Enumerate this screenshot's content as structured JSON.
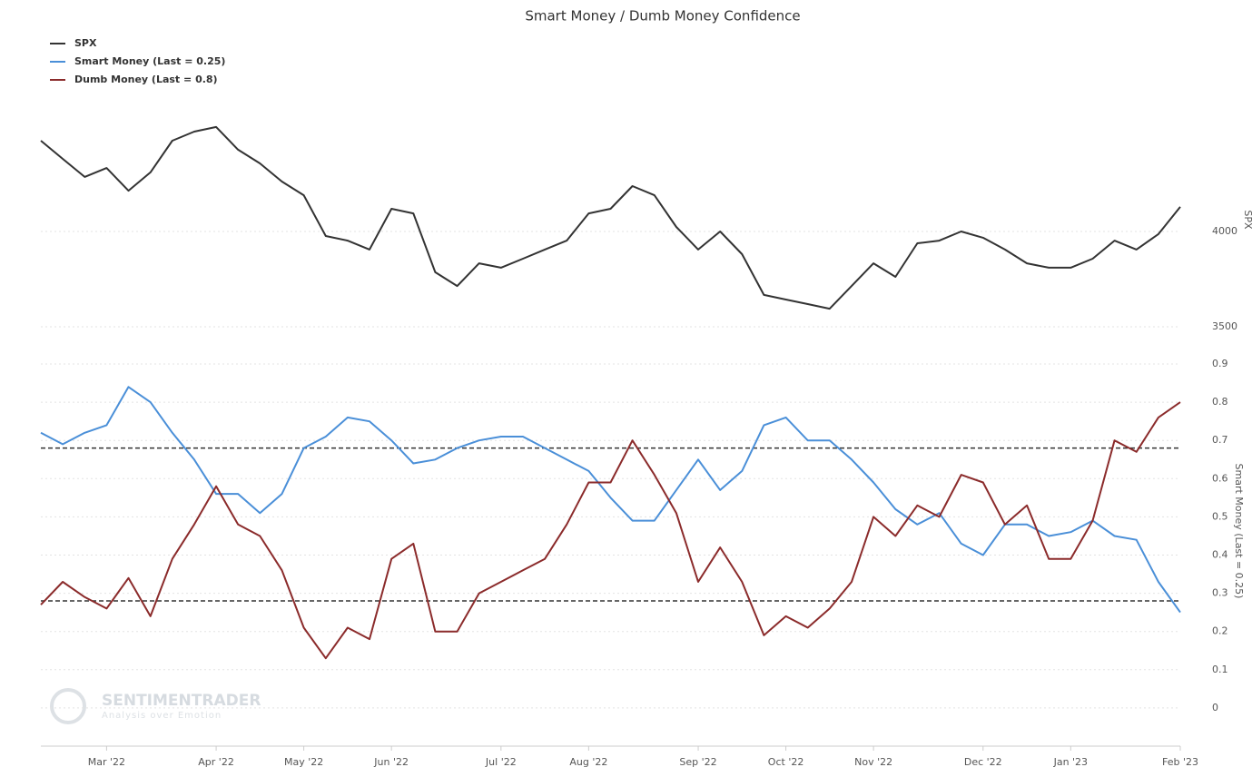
{
  "chart_data": {
    "type": "line",
    "title": "Smart Money / Dumb Money Confidence",
    "categories": [
      null,
      null,
      null,
      "Mar '22",
      null,
      null,
      null,
      null,
      "Apr '22",
      null,
      null,
      null,
      "May '22",
      null,
      null,
      null,
      "Jun '22",
      null,
      null,
      null,
      null,
      "Jul '22",
      null,
      null,
      null,
      "Aug '22",
      null,
      null,
      null,
      null,
      "Sep '22",
      null,
      null,
      null,
      "Oct '22",
      null,
      null,
      null,
      "Nov '22",
      null,
      null,
      null,
      null,
      "Dec '22",
      null,
      null,
      null,
      "Jan '23",
      null,
      null,
      null,
      null,
      "Feb '23"
    ],
    "series": [
      {
        "name": "SPX",
        "color": "#333333",
        "values": [
          4476,
          4381,
          4286,
          4333,
          4214,
          4310,
          4476,
          4524,
          4548,
          4429,
          4357,
          4262,
          4190,
          3976,
          3952,
          3905,
          4119,
          4095,
          3786,
          3714,
          3833,
          3810,
          3857,
          3905,
          3952,
          4095,
          4119,
          4238,
          4190,
          4024,
          3905,
          4000,
          3881,
          3667,
          3643,
          3619,
          3595,
          3714,
          3833,
          3762,
          3938,
          3952,
          4000,
          3967,
          3905,
          3833,
          3810,
          3810,
          3857,
          3952,
          3905,
          3986,
          4129
        ]
      },
      {
        "name": "Smart Money (Last = 0.25)",
        "color": "#4a8fd8",
        "axis": "y2",
        "values": [
          0.72,
          0.69,
          0.72,
          0.74,
          0.84,
          0.8,
          0.72,
          0.65,
          0.56,
          0.56,
          0.51,
          0.56,
          0.68,
          0.71,
          0.76,
          0.75,
          0.7,
          0.64,
          0.65,
          0.68,
          0.7,
          0.71,
          0.71,
          0.68,
          0.65,
          0.62,
          0.55,
          0.49,
          0.49,
          0.57,
          0.65,
          0.57,
          0.62,
          0.74,
          0.76,
          0.7,
          0.7,
          0.65,
          0.59,
          0.52,
          0.48,
          0.51,
          0.43,
          0.4,
          0.48,
          0.48,
          0.45,
          0.46,
          0.49,
          0.45,
          0.44,
          0.33,
          0.25
        ]
      },
      {
        "name": "Dumb Money (Last = 0.8)",
        "color": "#8b2b2b",
        "axis": "y2",
        "values": [
          0.27,
          0.33,
          0.29,
          0.26,
          0.34,
          0.24,
          0.39,
          0.48,
          0.58,
          0.48,
          0.45,
          0.36,
          0.21,
          0.13,
          0.21,
          0.18,
          0.39,
          0.43,
          0.2,
          0.2,
          0.3,
          0.33,
          0.36,
          0.39,
          0.48,
          0.59,
          0.59,
          0.7,
          0.61,
          0.51,
          0.33,
          0.42,
          0.33,
          0.19,
          0.24,
          0.21,
          0.26,
          0.33,
          0.5,
          0.45,
          0.53,
          0.5,
          0.61,
          0.59,
          0.48,
          0.53,
          0.39,
          0.39,
          0.49,
          0.7,
          0.67,
          0.76,
          0.8
        ]
      }
    ],
    "ylim": [
      3400,
      4700
    ],
    "yticks": [
      3500,
      4000
    ],
    "y_label": "SPX",
    "y2lim": [
      -0.1,
      0.9
    ],
    "y2ticks": [
      0,
      0.1,
      0.2,
      0.3,
      0.4,
      0.5,
      0.6,
      0.7,
      0.8,
      0.9
    ],
    "y2_label": "Smart Money (Last = 0.25)",
    "y2_reference_lines": [
      0.68,
      0.28
    ],
    "grid": true,
    "legend": "top-left",
    "watermark": {
      "title": "SENTIMENTRADER",
      "subtitle": "Analysis over Emotion"
    }
  }
}
